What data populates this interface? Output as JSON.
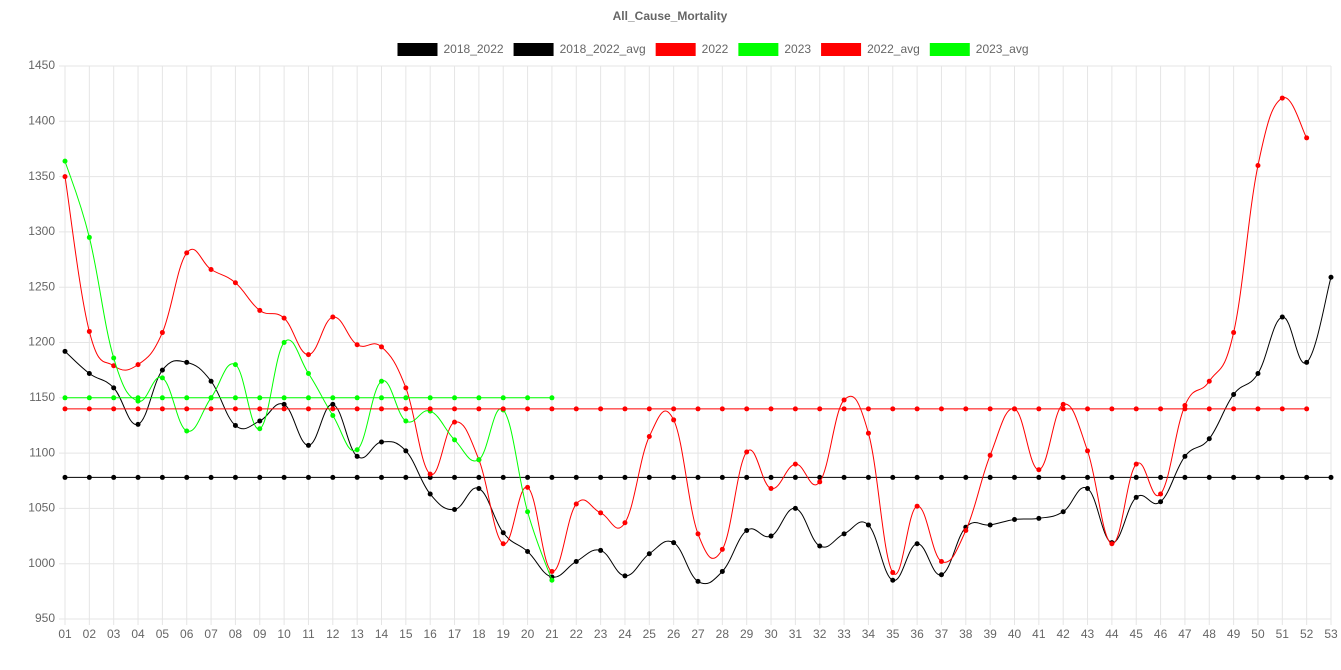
{
  "chart_data": {
    "type": "line",
    "title": "All_Cause_Mortality",
    "categories": [
      "01",
      "02",
      "03",
      "04",
      "05",
      "06",
      "07",
      "08",
      "09",
      "10",
      "11",
      "12",
      "13",
      "14",
      "15",
      "16",
      "17",
      "18",
      "19",
      "20",
      "21",
      "22",
      "23",
      "24",
      "25",
      "26",
      "27",
      "28",
      "29",
      "30",
      "31",
      "32",
      "33",
      "34",
      "35",
      "36",
      "37",
      "38",
      "39",
      "40",
      "41",
      "42",
      "43",
      "44",
      "45",
      "46",
      "47",
      "48",
      "49",
      "50",
      "51",
      "52",
      "53"
    ],
    "ylim": [
      950,
      1450
    ],
    "yticks": [
      950,
      1000,
      1050,
      1100,
      1150,
      1200,
      1250,
      1300,
      1350,
      1400,
      1450
    ],
    "grid": true,
    "legend": "top",
    "series": [
      {
        "name": "2018_2022",
        "color": "#000000",
        "values": [
          1192,
          1172,
          1159,
          1126,
          1175,
          1182,
          1165,
          1125,
          1129,
          1144,
          1107,
          1144,
          1097,
          1110,
          1102,
          1063,
          1049,
          1068,
          1028,
          1011,
          988,
          1002,
          1012,
          989,
          1009,
          1019,
          984,
          993,
          1030,
          1025,
          1050,
          1016,
          1027,
          1035,
          985,
          1018,
          990,
          1033,
          1035,
          1040,
          1041,
          1047,
          1068,
          1019,
          1060,
          1056,
          1097,
          1113,
          1153,
          1172,
          1223,
          1182,
          1259
        ]
      },
      {
        "name": "2018_2022_avg",
        "color": "#000000",
        "values": [
          1078,
          1078,
          1078,
          1078,
          1078,
          1078,
          1078,
          1078,
          1078,
          1078,
          1078,
          1078,
          1078,
          1078,
          1078,
          1078,
          1078,
          1078,
          1078,
          1078,
          1078,
          1078,
          1078,
          1078,
          1078,
          1078,
          1078,
          1078,
          1078,
          1078,
          1078,
          1078,
          1078,
          1078,
          1078,
          1078,
          1078,
          1078,
          1078,
          1078,
          1078,
          1078,
          1078,
          1078,
          1078,
          1078,
          1078,
          1078,
          1078,
          1078,
          1078,
          1078,
          1078
        ]
      },
      {
        "name": "2022",
        "color": "#ff0000",
        "values": [
          1350,
          1210,
          1179,
          1180,
          1209,
          1281,
          1266,
          1254,
          1229,
          1222,
          1189,
          1223,
          1198,
          1196,
          1159,
          1081,
          1128,
          1094,
          1018,
          1069,
          993,
          1054,
          1046,
          1037,
          1115,
          1130,
          1027,
          1013,
          1101,
          1068,
          1090,
          1074,
          1148,
          1118,
          992,
          1052,
          1002,
          1030,
          1098,
          1140,
          1085,
          1144,
          1102,
          1018,
          1090,
          1063,
          1143,
          1165,
          1209,
          1360,
          1421,
          1385,
          null
        ]
      },
      {
        "name": "2023",
        "color": "#00ff00",
        "values": [
          1364,
          1295,
          1186,
          1147,
          1168,
          1120,
          1150,
          1180,
          1122,
          1200,
          1172,
          1134,
          1103,
          1165,
          1129,
          1138,
          1112,
          1094,
          1139,
          1047,
          985,
          null,
          null,
          null,
          null,
          null,
          null,
          null,
          null,
          null,
          null,
          null,
          null,
          null,
          null,
          null,
          null,
          null,
          null,
          null,
          null,
          null,
          null,
          null,
          null,
          null,
          null,
          null,
          null,
          null,
          null,
          null,
          null
        ]
      },
      {
        "name": "2022_avg",
        "color": "#ff0000",
        "values": [
          1140,
          1140,
          1140,
          1140,
          1140,
          1140,
          1140,
          1140,
          1140,
          1140,
          1140,
          1140,
          1140,
          1140,
          1140,
          1140,
          1140,
          1140,
          1140,
          1140,
          1140,
          1140,
          1140,
          1140,
          1140,
          1140,
          1140,
          1140,
          1140,
          1140,
          1140,
          1140,
          1140,
          1140,
          1140,
          1140,
          1140,
          1140,
          1140,
          1140,
          1140,
          1140,
          1140,
          1140,
          1140,
          1140,
          1140,
          1140,
          1140,
          1140,
          1140,
          1140,
          null
        ]
      },
      {
        "name": "2023_avg",
        "color": "#00ff00",
        "values": [
          1150,
          1150,
          1150,
          1150,
          1150,
          1150,
          1150,
          1150,
          1150,
          1150,
          1150,
          1150,
          1150,
          1150,
          1150,
          1150,
          1150,
          1150,
          1150,
          1150,
          1150,
          null,
          null,
          null,
          null,
          null,
          null,
          null,
          null,
          null,
          null,
          null,
          null,
          null,
          null,
          null,
          null,
          null,
          null,
          null,
          null,
          null,
          null,
          null,
          null,
          null,
          null,
          null,
          null,
          null,
          null,
          null,
          null
        ]
      }
    ]
  }
}
